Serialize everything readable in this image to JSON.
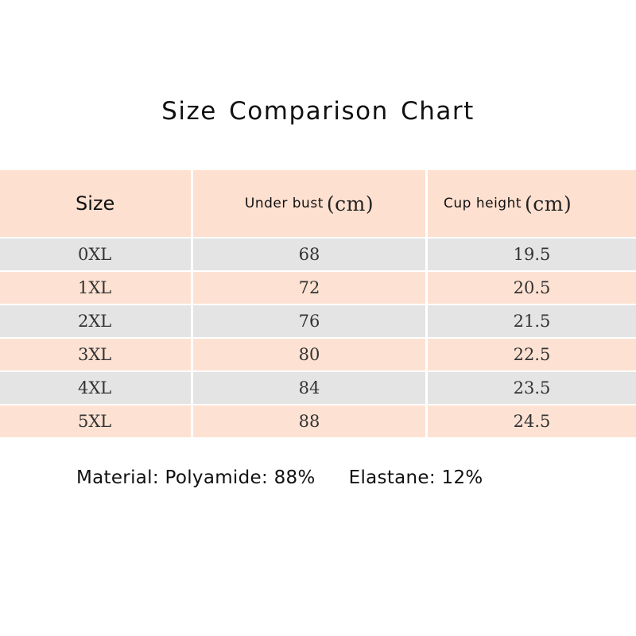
{
  "title": "Size Comparison Chart",
  "table": {
    "headers": {
      "size": "Size",
      "under_bust": "Under bust",
      "under_bust_unit": "(cm)",
      "cup_height": "Cup height",
      "cup_height_unit": "(cm)"
    },
    "rows": [
      {
        "size": "0XL",
        "under_bust": "68",
        "cup_height": "19.5"
      },
      {
        "size": "1XL",
        "under_bust": "72",
        "cup_height": "20.5"
      },
      {
        "size": "2XL",
        "under_bust": "76",
        "cup_height": "21.5"
      },
      {
        "size": "3XL",
        "under_bust": "80",
        "cup_height": "22.5"
      },
      {
        "size": "4XL",
        "under_bust": "84",
        "cup_height": "23.5"
      },
      {
        "size": "5XL",
        "under_bust": "88",
        "cup_height": "24.5"
      }
    ]
  },
  "material": {
    "polyamide": "Material: Polyamide: 88%",
    "elastane": "Elastane: 12%"
  },
  "colors": {
    "header_bg": "#fde0d0",
    "row_grey": "#e4e4e4",
    "row_pink": "#fde2d3"
  }
}
